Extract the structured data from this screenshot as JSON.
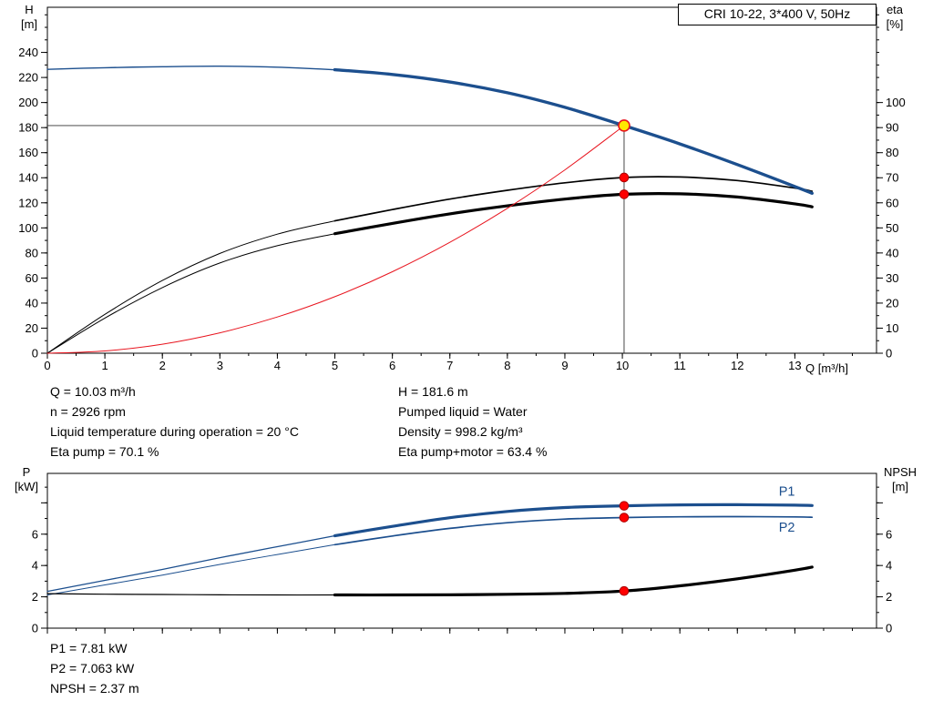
{
  "colors": {
    "curve_primary": "#1c4f8e",
    "curve_secondary": "#000000",
    "system_curve": "#e8141e",
    "marker_fill": "#ff0000",
    "marker_edge": "#aa0000",
    "duty_fill": "#ffe600",
    "duty_edge": "#e8141e",
    "axis": "#000000",
    "crosshair": "#333333"
  },
  "annotations": {
    "top_left": [
      "Q = 10.03 m³/h",
      "n = 2926 rpm",
      "Liquid temperature during operation = 20 °C",
      "Eta pump = 70.1 %"
    ],
    "top_right": [
      "H = 181.6 m",
      "Pumped liquid = Water",
      "Density = 998.2 kg/m³",
      "Eta pump+motor = 63.4 %"
    ],
    "bottom": [
      "P1 = 7.81 kW",
      "P2 = 7.063 kW",
      "NPSH = 2.37 m"
    ]
  },
  "chart_data": [
    {
      "type": "line",
      "name": "qh-eta-chart",
      "title": "CRI 10-22, 3*400 V, 50Hz",
      "xlabel": "Q [m³/h]",
      "ylabel_left_lines": [
        "H",
        "[m]"
      ],
      "ylabel_right_lines": [
        "eta",
        "[%]"
      ],
      "xlim": [
        0,
        14.42
      ],
      "ylim_left": [
        0,
        276
      ],
      "ylim_right": [
        0,
        138
      ],
      "x_ticks": [
        0,
        1,
        2,
        3,
        4,
        5,
        6,
        7,
        8,
        9,
        10,
        11,
        12,
        13
      ],
      "x_minor_step": 0.5,
      "y_ticks_left": [
        0,
        20,
        40,
        60,
        80,
        100,
        120,
        140,
        160,
        180,
        200,
        220,
        240
      ],
      "y_minor_left": 10,
      "y_ticks_right": [
        0,
        10,
        20,
        30,
        40,
        50,
        60,
        70,
        80,
        90,
        100
      ],
      "y_minor_right": 5,
      "series": [
        {
          "name": "eta-pump-curve",
          "axis": "right",
          "color_key": "curve_secondary",
          "width": 1.0,
          "width_thick": 1.7,
          "thick_from": 5,
          "x": [
            0,
            1,
            2,
            3,
            4,
            5,
            6,
            7,
            8,
            9,
            10.03,
            11,
            12,
            13,
            13.3
          ],
          "y": [
            0,
            15.5,
            29,
            39.8,
            47.5,
            52.8,
            57.3,
            61.5,
            65,
            68,
            70.1,
            70.3,
            68.9,
            65.9,
            64.6
          ]
        },
        {
          "name": "eta-pump-motor-curve",
          "axis": "right",
          "color_key": "curve_secondary",
          "width": 1.0,
          "width_thick": 3.2,
          "thick_from": 5,
          "x": [
            0,
            1,
            2,
            3,
            4,
            5,
            6,
            7,
            8,
            9,
            10.03,
            11,
            12,
            13,
            13.3
          ],
          "y": [
            0,
            14,
            26.2,
            36,
            42.9,
            47.7,
            51.8,
            55.6,
            58.8,
            61.5,
            63.4,
            63.6,
            62.3,
            59.6,
            58.4
          ]
        },
        {
          "name": "pump-curve-H",
          "axis": "left",
          "color_key": "curve_primary",
          "width": 1.4,
          "width_thick": 3.4,
          "thick_from": 5,
          "x": [
            0,
            1,
            2,
            3,
            4,
            5,
            6,
            7,
            8,
            9,
            10.03,
            11,
            12,
            13,
            13.3
          ],
          "y": [
            226.5,
            227.8,
            228.6,
            229,
            228.2,
            226.2,
            222.4,
            216.4,
            207.8,
            196.2,
            181.6,
            167,
            150.5,
            133,
            127.6
          ]
        },
        {
          "name": "system-curve",
          "axis": "left",
          "color_key": "system_curve",
          "width": 1.0,
          "x": [
            0,
            1,
            2,
            3,
            4,
            5,
            6,
            7,
            8,
            9,
            10.03
          ],
          "y": [
            0,
            1.8,
            7.2,
            16.3,
            28.9,
            45.1,
            65,
            88.5,
            115.6,
            146.3,
            181.6
          ]
        }
      ],
      "crosshair": {
        "q": 10.03,
        "value": 181.6,
        "axis": "left"
      },
      "duty_point": {
        "q": 10.03,
        "value": 181.6,
        "axis": "left"
      },
      "markers": [
        {
          "q": 10.03,
          "value": 70.1,
          "axis": "right"
        },
        {
          "q": 10.03,
          "value": 63.4,
          "axis": "right"
        }
      ]
    },
    {
      "type": "line",
      "name": "power-npsh-chart",
      "xlabel": "",
      "ylabel_left_lines": [
        "P",
        "[kW]"
      ],
      "ylabel_right_lines": [
        "NPSH",
        "[m]"
      ],
      "xlim": [
        0,
        14.42
      ],
      "ylim_left": [
        0,
        9.88
      ],
      "ylim_right": [
        0,
        9.88
      ],
      "x_ticks": [
        0,
        1,
        2,
        3,
        4,
        5,
        6,
        7,
        8,
        9,
        10,
        11,
        12,
        13
      ],
      "x_tick_labels_visible": false,
      "x_minor_step": 0.5,
      "y_ticks_left": [
        0,
        2,
        4,
        6
      ],
      "y_ticks_left_extra": [
        8
      ],
      "y_minor_left": 1,
      "y_ticks_right": [
        0,
        2,
        4,
        6
      ],
      "y_ticks_right_extra": [
        8
      ],
      "y_minor_right": 1,
      "series": [
        {
          "name": "P1-curve",
          "axis": "left",
          "color_key": "curve_primary",
          "width": 1.3,
          "width_thick": 3.2,
          "thick_from": 5,
          "x": [
            0,
            1,
            2,
            3,
            4,
            5,
            6,
            7,
            8,
            9,
            10.03,
            11,
            12,
            13,
            13.3
          ],
          "y": [
            2.35,
            3.05,
            3.75,
            4.5,
            5.2,
            5.9,
            6.5,
            7.05,
            7.45,
            7.7,
            7.81,
            7.87,
            7.88,
            7.85,
            7.83
          ]
        },
        {
          "name": "P2-curve",
          "axis": "left",
          "color_key": "curve_primary",
          "width": 1.0,
          "width_thick": 1.7,
          "thick_from": 5,
          "x": [
            0,
            1,
            2,
            3,
            4,
            5,
            6,
            7,
            8,
            9,
            10.03,
            11,
            12,
            13,
            13.3
          ],
          "y": [
            2.12,
            2.76,
            3.39,
            4.07,
            4.7,
            5.33,
            5.88,
            6.37,
            6.73,
            6.96,
            7.06,
            7.11,
            7.12,
            7.1,
            7.08
          ]
        },
        {
          "name": "NPSH-curve",
          "axis": "left",
          "color_key": "curve_secondary",
          "width": 1.2,
          "width_thick": 3.2,
          "thick_from": 5,
          "x": [
            0,
            1,
            2,
            3,
            4,
            5,
            6,
            7,
            8,
            9,
            10.03,
            11,
            12,
            13,
            13.3
          ],
          "y": [
            2.2,
            2.17,
            2.15,
            2.13,
            2.12,
            2.12,
            2.12,
            2.13,
            2.16,
            2.22,
            2.37,
            2.7,
            3.15,
            3.7,
            3.9
          ]
        }
      ],
      "markers": [
        {
          "q": 10.03,
          "value": 7.81,
          "axis": "left"
        },
        {
          "q": 10.03,
          "value": 7.06,
          "axis": "left"
        },
        {
          "q": 10.03,
          "value": 2.37,
          "axis": "left"
        }
      ],
      "curve_labels": [
        {
          "text": "P1",
          "q": 12.72,
          "value": 8.45
        },
        {
          "text": "P2",
          "q": 12.72,
          "value": 6.15
        }
      ]
    }
  ]
}
